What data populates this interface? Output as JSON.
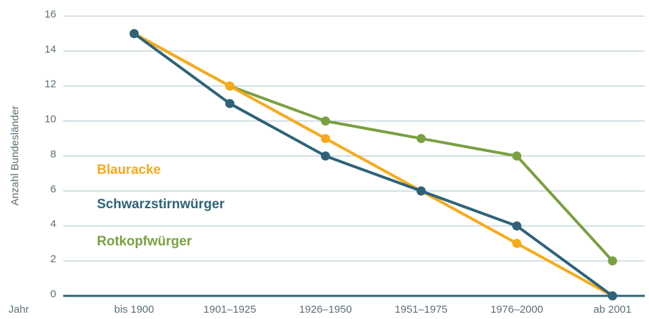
{
  "chart_data": {
    "type": "line",
    "y_label": "Anzahl Bundesländer",
    "x_label": "Jahr",
    "categories": [
      "bis 1900",
      "1901–1925",
      "1926–1950",
      "1951–1975",
      "1976–2000",
      "ab 2001"
    ],
    "series": [
      {
        "name": "Rotkopfwürger",
        "color": "#7aa040",
        "values": [
          15,
          12,
          10,
          9,
          8,
          2
        ]
      },
      {
        "name": "Blauracke",
        "color": "#f6aa1c",
        "values": [
          15,
          12,
          9,
          6,
          3,
          0
        ]
      },
      {
        "name": "Schwarzstirnwürger",
        "color": "#2e6379",
        "values": [
          15,
          11,
          8,
          6,
          4,
          0
        ]
      }
    ],
    "ylim": [
      0,
      16
    ],
    "yticks": [
      0,
      2,
      4,
      6,
      8,
      10,
      12,
      14,
      16
    ],
    "grid": true
  }
}
